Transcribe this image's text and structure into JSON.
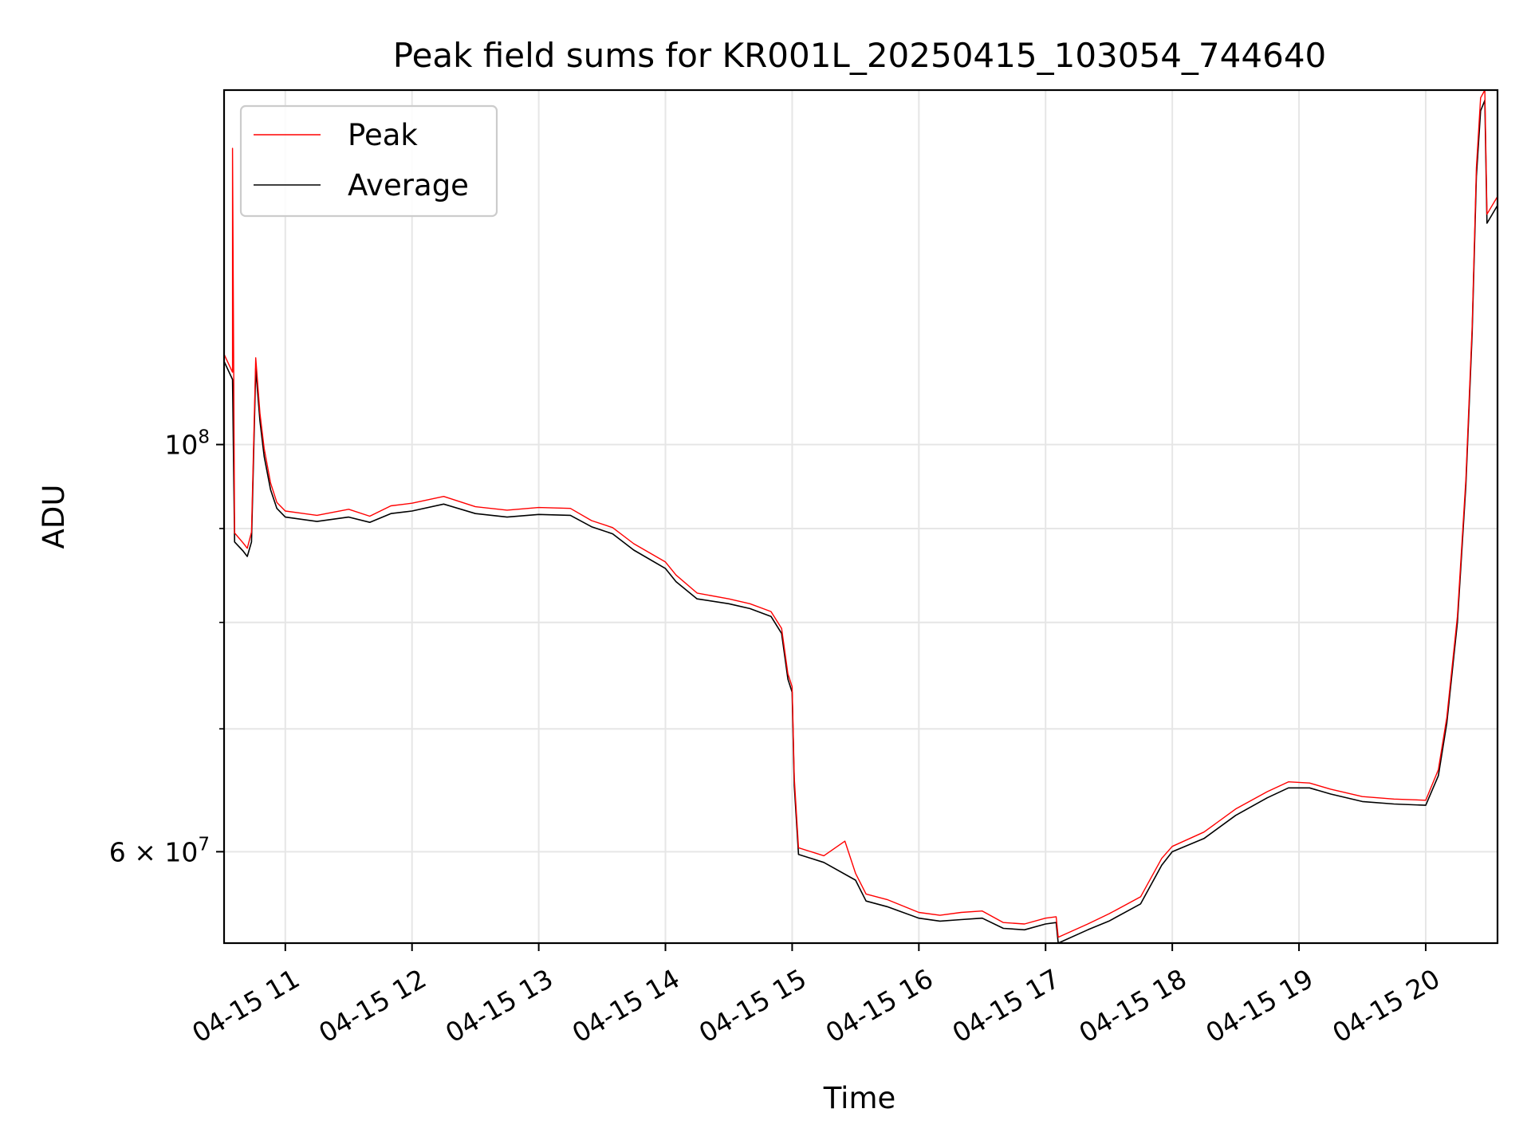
{
  "chart_data": {
    "type": "line",
    "title": "Peak field sums for KR001L_20250415_103054_744640",
    "xlabel": "Time",
    "ylabel": "ADU",
    "y_scale": "log",
    "grid": true,
    "legend_position": "top-left",
    "x_range": [
      "2025-04-15 10:31",
      "2025-04-15 20:34"
    ],
    "ylim": [
      53500000,
      156000000
    ],
    "x_ticks": [
      {
        "value": "2025-04-15 11:00",
        "label": "04-15 11"
      },
      {
        "value": "2025-04-15 12:00",
        "label": "04-15 12"
      },
      {
        "value": "2025-04-15 13:00",
        "label": "04-15 13"
      },
      {
        "value": "2025-04-15 14:00",
        "label": "04-15 14"
      },
      {
        "value": "2025-04-15 15:00",
        "label": "04-15 15"
      },
      {
        "value": "2025-04-15 16:00",
        "label": "04-15 16"
      },
      {
        "value": "2025-04-15 17:00",
        "label": "04-15 17"
      },
      {
        "value": "2025-04-15 18:00",
        "label": "04-15 18"
      },
      {
        "value": "2025-04-15 19:00",
        "label": "04-15 19"
      },
      {
        "value": "2025-04-15 20:00",
        "label": "04-15 20"
      }
    ],
    "y_ticks": [
      {
        "value": 100000000,
        "base": "10",
        "exp": "8"
      },
      {
        "value": 60000000,
        "base": "6 × 10",
        "exp": "7"
      }
    ],
    "y_minor_ticks": [
      70000000,
      80000000,
      90000000
    ],
    "series": [
      {
        "name": "Average",
        "color": "#000000",
        "points": [
          [
            "2025-04-15 10:31",
            111000000
          ],
          [
            "2025-04-15 10:35",
            108500000
          ],
          [
            "2025-04-15 10:36",
            88500000
          ],
          [
            "2025-04-15 10:40",
            87500000
          ],
          [
            "2025-04-15 10:42",
            86900000
          ],
          [
            "2025-04-15 10:44",
            88500000
          ],
          [
            "2025-04-15 10:46",
            110000000
          ],
          [
            "2025-04-15 10:48",
            103000000
          ],
          [
            "2025-04-15 10:50",
            98500000
          ],
          [
            "2025-04-15 10:53",
            94500000
          ],
          [
            "2025-04-15 10:56",
            92300000
          ],
          [
            "2025-04-15 11:00",
            91300000
          ],
          [
            "2025-04-15 11:15",
            90800000
          ],
          [
            "2025-04-15 11:30",
            91300000
          ],
          [
            "2025-04-15 11:40",
            90700000
          ],
          [
            "2025-04-15 11:50",
            91700000
          ],
          [
            "2025-04-15 12:00",
            92000000
          ],
          [
            "2025-04-15 12:15",
            92800000
          ],
          [
            "2025-04-15 12:30",
            91700000
          ],
          [
            "2025-04-15 12:45",
            91300000
          ],
          [
            "2025-04-15 13:00",
            91600000
          ],
          [
            "2025-04-15 13:15",
            91500000
          ],
          [
            "2025-04-15 13:25",
            90200000
          ],
          [
            "2025-04-15 13:35",
            89400000
          ],
          [
            "2025-04-15 13:45",
            87600000
          ],
          [
            "2025-04-15 14:00",
            85600000
          ],
          [
            "2025-04-15 14:05",
            84200000
          ],
          [
            "2025-04-15 14:15",
            82400000
          ],
          [
            "2025-04-15 14:30",
            81900000
          ],
          [
            "2025-04-15 14:40",
            81400000
          ],
          [
            "2025-04-15 14:50",
            80600000
          ],
          [
            "2025-04-15 14:55",
            78900000
          ],
          [
            "2025-04-15 14:58",
            74500000
          ],
          [
            "2025-04-15 15:00",
            73300000
          ],
          [
            "2025-04-15 15:01",
            65200000
          ],
          [
            "2025-04-15 15:03",
            59800000
          ],
          [
            "2025-04-15 15:15",
            59200000
          ],
          [
            "2025-04-15 15:30",
            57900000
          ],
          [
            "2025-04-15 15:35",
            56400000
          ],
          [
            "2025-04-15 15:45",
            56000000
          ],
          [
            "2025-04-15 16:00",
            55200000
          ],
          [
            "2025-04-15 16:10",
            55000000
          ],
          [
            "2025-04-15 16:20",
            55100000
          ],
          [
            "2025-04-15 16:30",
            55200000
          ],
          [
            "2025-04-15 16:40",
            54500000
          ],
          [
            "2025-04-15 16:50",
            54400000
          ],
          [
            "2025-04-15 17:00",
            54800000
          ],
          [
            "2025-04-15 17:05",
            54900000
          ],
          [
            "2025-04-15 17:06",
            53500000
          ],
          [
            "2025-04-15 17:20",
            54400000
          ],
          [
            "2025-04-15 17:30",
            55000000
          ],
          [
            "2025-04-15 17:45",
            56200000
          ],
          [
            "2025-04-15 17:55",
            59000000
          ],
          [
            "2025-04-15 18:00",
            60000000
          ],
          [
            "2025-04-15 18:15",
            61000000
          ],
          [
            "2025-04-15 18:30",
            62800000
          ],
          [
            "2025-04-15 18:45",
            64200000
          ],
          [
            "2025-04-15 18:55",
            65000000
          ],
          [
            "2025-04-15 19:05",
            65000000
          ],
          [
            "2025-04-15 19:15",
            64500000
          ],
          [
            "2025-04-15 19:30",
            63900000
          ],
          [
            "2025-04-15 19:45",
            63700000
          ],
          [
            "2025-04-15 20:00",
            63600000
          ],
          [
            "2025-04-15 20:06",
            66000000
          ],
          [
            "2025-04-15 20:10",
            70500000
          ],
          [
            "2025-04-15 20:15",
            80000000
          ],
          [
            "2025-04-15 20:19",
            95000000
          ],
          [
            "2025-04-15 20:22",
            115000000
          ],
          [
            "2025-04-15 20:24",
            140000000
          ],
          [
            "2025-04-15 20:26",
            152000000
          ],
          [
            "2025-04-15 20:28",
            154000000
          ],
          [
            "2025-04-15 20:29",
            132000000
          ],
          [
            "2025-04-15 20:34",
            135000000
          ]
        ]
      },
      {
        "name": "Peak",
        "color": "#ff0000",
        "points": [
          [
            "2025-04-15 10:31",
            112000000
          ],
          [
            "2025-04-15 10:35",
            109500000
          ],
          [
            "2025-04-15 10:35",
            145000000
          ],
          [
            "2025-04-15 10:36",
            89500000
          ],
          [
            "2025-04-15 10:40",
            88400000
          ],
          [
            "2025-04-15 10:42",
            87800000
          ],
          [
            "2025-04-15 10:44",
            89600000
          ],
          [
            "2025-04-15 10:46",
            111500000
          ],
          [
            "2025-04-15 10:48",
            104000000
          ],
          [
            "2025-04-15 10:50",
            99500000
          ],
          [
            "2025-04-15 10:53",
            95300000
          ],
          [
            "2025-04-15 10:56",
            93000000
          ],
          [
            "2025-04-15 11:00",
            92000000
          ],
          [
            "2025-04-15 11:15",
            91500000
          ],
          [
            "2025-04-15 11:30",
            92200000
          ],
          [
            "2025-04-15 11:40",
            91400000
          ],
          [
            "2025-04-15 11:50",
            92600000
          ],
          [
            "2025-04-15 12:00",
            92900000
          ],
          [
            "2025-04-15 12:15",
            93700000
          ],
          [
            "2025-04-15 12:30",
            92500000
          ],
          [
            "2025-04-15 12:45",
            92100000
          ],
          [
            "2025-04-15 13:00",
            92400000
          ],
          [
            "2025-04-15 13:15",
            92300000
          ],
          [
            "2025-04-15 13:25",
            90900000
          ],
          [
            "2025-04-15 13:35",
            90100000
          ],
          [
            "2025-04-15 13:45",
            88300000
          ],
          [
            "2025-04-15 14:00",
            86300000
          ],
          [
            "2025-04-15 14:05",
            84900000
          ],
          [
            "2025-04-15 14:15",
            83000000
          ],
          [
            "2025-04-15 14:30",
            82400000
          ],
          [
            "2025-04-15 14:40",
            81900000
          ],
          [
            "2025-04-15 14:50",
            81100000
          ],
          [
            "2025-04-15 14:55",
            79400000
          ],
          [
            "2025-04-15 14:58",
            75000000
          ],
          [
            "2025-04-15 15:00",
            73800000
          ],
          [
            "2025-04-15 15:01",
            65800000
          ],
          [
            "2025-04-15 15:03",
            60300000
          ],
          [
            "2025-04-15 15:15",
            59700000
          ],
          [
            "2025-04-15 15:25",
            60800000
          ],
          [
            "2025-04-15 15:30",
            58400000
          ],
          [
            "2025-04-15 15:35",
            56900000
          ],
          [
            "2025-04-15 15:45",
            56500000
          ],
          [
            "2025-04-15 16:00",
            55600000
          ],
          [
            "2025-04-15 16:10",
            55400000
          ],
          [
            "2025-04-15 16:20",
            55600000
          ],
          [
            "2025-04-15 16:30",
            55700000
          ],
          [
            "2025-04-15 16:40",
            54900000
          ],
          [
            "2025-04-15 16:50",
            54800000
          ],
          [
            "2025-04-15 17:00",
            55200000
          ],
          [
            "2025-04-15 17:05",
            55300000
          ],
          [
            "2025-04-15 17:06",
            53900000
          ],
          [
            "2025-04-15 17:20",
            54800000
          ],
          [
            "2025-04-15 17:30",
            55500000
          ],
          [
            "2025-04-15 17:45",
            56700000
          ],
          [
            "2025-04-15 17:55",
            59500000
          ],
          [
            "2025-04-15 18:00",
            60400000
          ],
          [
            "2025-04-15 18:15",
            61500000
          ],
          [
            "2025-04-15 18:30",
            63300000
          ],
          [
            "2025-04-15 18:45",
            64700000
          ],
          [
            "2025-04-15 18:55",
            65500000
          ],
          [
            "2025-04-15 19:05",
            65400000
          ],
          [
            "2025-04-15 19:15",
            64900000
          ],
          [
            "2025-04-15 19:30",
            64300000
          ],
          [
            "2025-04-15 19:45",
            64100000
          ],
          [
            "2025-04-15 20:00",
            64000000
          ],
          [
            "2025-04-15 20:06",
            66500000
          ],
          [
            "2025-04-15 20:10",
            71000000
          ],
          [
            "2025-04-15 20:15",
            80600000
          ],
          [
            "2025-04-15 20:19",
            95700000
          ],
          [
            "2025-04-15 20:22",
            116000000
          ],
          [
            "2025-04-15 20:24",
            141500000
          ],
          [
            "2025-04-15 20:26",
            154500000
          ],
          [
            "2025-04-15 20:28",
            156000000
          ],
          [
            "2025-04-15 20:29",
            133500000
          ],
          [
            "2025-04-15 20:34",
            136500000
          ]
        ]
      }
    ]
  }
}
